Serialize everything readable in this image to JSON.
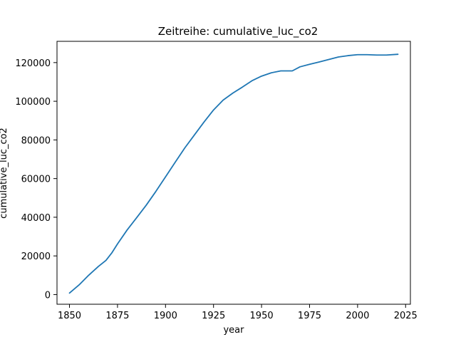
{
  "chart_data": {
    "type": "line",
    "title": "Zeitreihe: cumulative_luc_co2",
    "xlabel": "year",
    "ylabel": "cumulative_luc_co2",
    "xlim": [
      1843.5,
      2027.5
    ],
    "ylim": [
      -5000,
      131000
    ],
    "xticks": [
      1850,
      1875,
      1900,
      1925,
      1950,
      1975,
      2000,
      2025
    ],
    "yticks": [
      0,
      20000,
      40000,
      60000,
      80000,
      100000,
      120000
    ],
    "grid": false,
    "colors": {
      "line": "#1f77b4"
    },
    "series": [
      {
        "x": [
          1850,
          1855,
          1860,
          1865,
          1869,
          1872,
          1875,
          1880,
          1885,
          1890,
          1895,
          1900,
          1905,
          1910,
          1915,
          1920,
          1925,
          1930,
          1935,
          1940,
          1945,
          1950,
          1955,
          1960,
          1966,
          1970,
          1975,
          1980,
          1985,
          1990,
          1995,
          2000,
          2005,
          2010,
          2015,
          2021
        ],
        "values": [
          800,
          5000,
          10000,
          14500,
          17700,
          21500,
          26200,
          33400,
          39800,
          46300,
          53400,
          60900,
          68400,
          75800,
          82500,
          89200,
          95500,
          100600,
          104200,
          107300,
          110600,
          113000,
          114700,
          115700,
          115700,
          117800,
          119100,
          120300,
          121600,
          122900,
          123600,
          124100,
          124100,
          123900,
          123900,
          124300
        ]
      }
    ]
  }
}
